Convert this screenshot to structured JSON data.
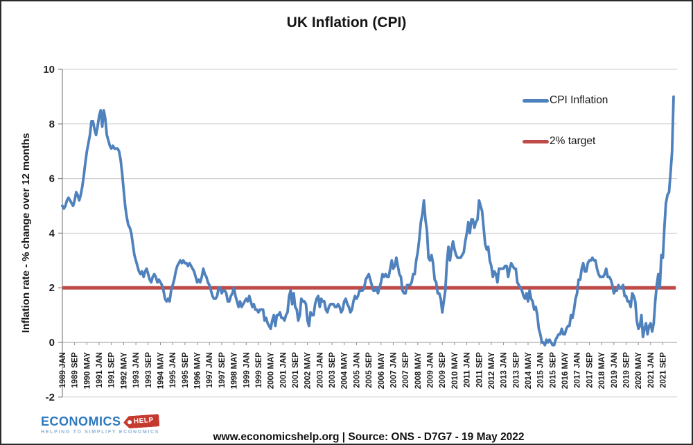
{
  "footer": {
    "text": "www.economicshelp.org | Source: ONS - D7G7 - 19 May 2022"
  },
  "logo": {
    "name": "ECONOMICS",
    "tag": "HELP",
    "tagline": "HELPING TO SIMPLIFY ECONOMICS",
    "blue": "#2E79BE",
    "red": "#C6392F"
  },
  "chart_data": {
    "type": "line",
    "title": "UK Inflation (CPI)",
    "xlabel": "",
    "ylabel": "Inflation rate  - % change over 12 months",
    "ylim": [
      -2,
      10
    ],
    "yticks": [
      -2,
      0,
      2,
      4,
      6,
      8,
      10
    ],
    "grid": "horizontal",
    "legend_position": "upper right",
    "x_start_month": "1989 JAN",
    "x_end_month": "2022 APR",
    "xtick_every_months": 8,
    "xtick_labels": [
      "1989 JAN",
      "1989 SEP",
      "1990 MAY",
      "1991 JAN",
      "1991 SEP",
      "1992 MAY",
      "1993 JAN",
      "1993 SEP",
      "1994 MAY",
      "1995 JAN",
      "1995 SEP",
      "1996 MAY",
      "1997 JAN",
      "1997 SEP",
      "1998 MAY",
      "1999 JAN",
      "1999 SEP",
      "2000 MAY",
      "2001 JAN",
      "2001 SEP",
      "2002 MAY",
      "2003 JAN",
      "2003 SEP",
      "2004 MAY",
      "2005 JAN",
      "2005 SEP",
      "2006 MAY",
      "2007 JAN",
      "2007 SEP",
      "2008 MAY",
      "2009 JAN",
      "2009 SEP",
      "2010 MAY",
      "2011 JAN",
      "2011 SEP",
      "2012 MAY",
      "2013 JAN",
      "2013 SEP",
      "2014 MAY",
      "2015 JAN",
      "2015 SEP",
      "2016 MAY",
      "2017 JAN",
      "2017 SEP",
      "2018 MAY",
      "2019 JAN",
      "2019 SEP",
      "2020 MAY",
      "2021 JAN",
      "2021 SEP"
    ],
    "target_line": {
      "label": "2% target",
      "value": 2,
      "color": "#BE4B48"
    },
    "series": [
      {
        "name": "CPI Inflation",
        "color": "#4F81BD",
        "monthly_from": "1989 JAN",
        "values": [
          5.0,
          4.9,
          5.0,
          5.2,
          5.3,
          5.2,
          5.1,
          5.0,
          5.2,
          5.5,
          5.4,
          5.2,
          5.4,
          5.7,
          6.1,
          6.6,
          7.0,
          7.3,
          7.6,
          8.1,
          8.1,
          7.8,
          7.6,
          7.9,
          8.3,
          8.5,
          7.9,
          8.5,
          8.2,
          7.6,
          7.4,
          7.2,
          7.1,
          7.2,
          7.1,
          7.1,
          7.1,
          7.0,
          6.7,
          6.2,
          5.6,
          5.0,
          4.6,
          4.3,
          4.2,
          4.0,
          3.6,
          3.2,
          3.0,
          2.8,
          2.6,
          2.5,
          2.6,
          2.4,
          2.6,
          2.7,
          2.5,
          2.3,
          2.2,
          2.4,
          2.5,
          2.4,
          2.2,
          2.3,
          2.2,
          2.1,
          1.9,
          1.6,
          1.5,
          1.6,
          1.5,
          1.9,
          2.1,
          2.3,
          2.6,
          2.8,
          2.9,
          3.0,
          2.9,
          3.0,
          2.9,
          2.9,
          2.8,
          2.9,
          2.8,
          2.7,
          2.6,
          2.4,
          2.2,
          2.3,
          2.2,
          2.4,
          2.7,
          2.5,
          2.4,
          2.2,
          2.1,
          1.9,
          1.7,
          1.6,
          1.6,
          1.7,
          2.0,
          2.0,
          1.8,
          1.9,
          1.9,
          1.8,
          1.5,
          1.5,
          1.7,
          1.8,
          2.0,
          1.7,
          1.5,
          1.3,
          1.5,
          1.3,
          1.4,
          1.5,
          1.6,
          1.5,
          1.7,
          1.5,
          1.3,
          1.4,
          1.2,
          1.2,
          1.1,
          1.2,
          1.2,
          1.2,
          0.8,
          0.9,
          0.7,
          0.6,
          0.5,
          0.8,
          1.0,
          0.6,
          1.0,
          1.0,
          1.1,
          0.9,
          0.9,
          0.8,
          1.0,
          1.1,
          1.7,
          1.9,
          1.4,
          1.8,
          1.3,
          1.2,
          0.8,
          1.0,
          1.6,
          1.5,
          1.5,
          1.4,
          0.8,
          0.6,
          1.1,
          1.0,
          1.0,
          1.4,
          1.6,
          1.7,
          1.3,
          1.6,
          1.5,
          1.5,
          1.2,
          1.1,
          1.3,
          1.4,
          1.4,
          1.4,
          1.3,
          1.3,
          1.4,
          1.3,
          1.1,
          1.2,
          1.5,
          1.6,
          1.4,
          1.3,
          1.1,
          1.2,
          1.5,
          1.7,
          1.6,
          1.7,
          1.9,
          1.9,
          1.9,
          2.0,
          2.3,
          2.4,
          2.5,
          2.3,
          2.1,
          1.9,
          1.9,
          2.0,
          1.8,
          2.0,
          2.2,
          2.5,
          2.4,
          2.5,
          2.4,
          2.4,
          2.7,
          3.0,
          2.7,
          2.8,
          3.1,
          2.8,
          2.5,
          2.4,
          1.9,
          1.8,
          1.8,
          2.1,
          2.1,
          2.1,
          2.2,
          2.5,
          2.5,
          3.0,
          3.3,
          3.8,
          4.4,
          4.7,
          5.2,
          4.5,
          4.1,
          3.1,
          3.0,
          3.2,
          2.9,
          2.3,
          2.2,
          1.8,
          1.8,
          1.6,
          1.1,
          1.5,
          1.9,
          2.9,
          3.5,
          3.0,
          3.4,
          3.7,
          3.4,
          3.2,
          3.1,
          3.1,
          3.1,
          3.2,
          3.3,
          3.7,
          4.0,
          4.4,
          4.0,
          4.5,
          4.5,
          4.2,
          4.4,
          4.5,
          5.2,
          5.0,
          4.8,
          4.2,
          3.6,
          3.4,
          3.5,
          3.0,
          2.8,
          2.4,
          2.6,
          2.5,
          2.2,
          2.7,
          2.7,
          2.7,
          2.7,
          2.8,
          2.8,
          2.4,
          2.7,
          2.9,
          2.8,
          2.7,
          2.7,
          2.2,
          2.1,
          2.0,
          1.9,
          1.7,
          1.6,
          1.8,
          1.5,
          1.9,
          1.6,
          1.5,
          1.2,
          1.3,
          1.0,
          0.5,
          0.3,
          0.0,
          0.0,
          -0.1,
          0.1,
          0.0,
          0.1,
          0.0,
          -0.1,
          -0.1,
          0.1,
          0.2,
          0.3,
          0.3,
          0.5,
          0.3,
          0.3,
          0.5,
          0.6,
          0.6,
          1.0,
          0.9,
          1.2,
          1.6,
          1.8,
          2.3,
          2.3,
          2.7,
          2.9,
          2.6,
          2.6,
          2.9,
          3.0,
          3.0,
          3.1,
          3.0,
          3.0,
          2.7,
          2.5,
          2.4,
          2.4,
          2.4,
          2.5,
          2.7,
          2.4,
          2.4,
          2.3,
          2.1,
          1.8,
          1.9,
          1.9,
          2.1,
          2.0,
          2.0,
          2.1,
          1.7,
          1.7,
          1.5,
          1.5,
          1.3,
          1.8,
          1.7,
          1.5,
          0.8,
          0.5,
          0.6,
          1.0,
          0.2,
          0.5,
          0.7,
          0.3,
          0.6,
          0.7,
          0.4,
          0.7,
          1.5,
          2.1,
          2.5,
          2.0,
          3.2,
          3.1,
          4.2,
          5.1,
          5.4,
          5.5,
          6.2,
          7.0,
          9.0
        ]
      }
    ],
    "colors": {
      "series_blue": "#4F81BD",
      "target_red": "#BE4B48",
      "gridline": "#C9C9C9",
      "axis": "#8C8C8C"
    }
  }
}
